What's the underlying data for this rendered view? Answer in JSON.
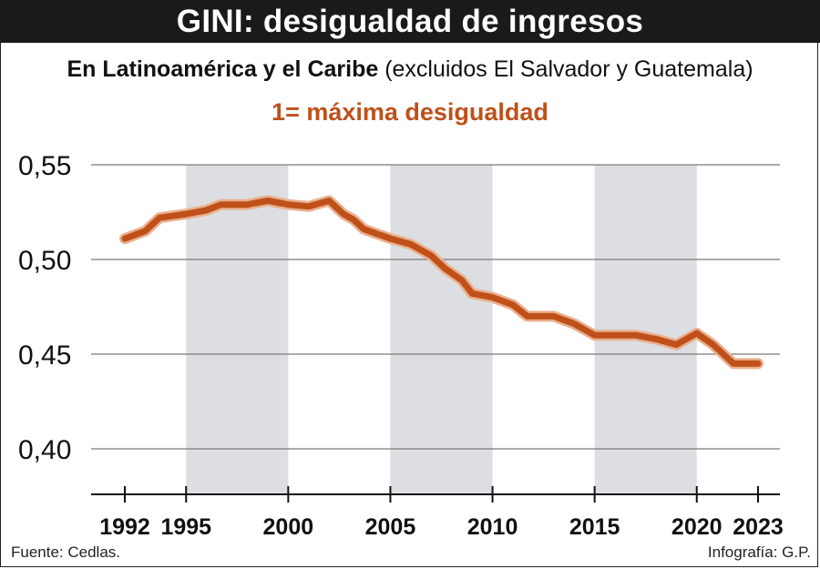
{
  "header": {
    "title": "GINI: desigualdad de ingresos",
    "subtitle_bold": "En Latinoamérica y el Caribe",
    "subtitle_rest": " (excluidos El Salvador y Guatemala)",
    "note": "1= máxima desigualdad"
  },
  "footer": {
    "source": "Fuente: Cedlas.",
    "credit": "Infografía: G.P."
  },
  "colors": {
    "line": "#c0501a",
    "band": "#dcdee2",
    "title_bg": "#1a1a1a"
  },
  "chart_data": {
    "type": "line",
    "title": "GINI: desigualdad de ingresos",
    "subtitle": "En Latinoamérica y el Caribe (excluidos El Salvador y Guatemala)",
    "xlabel": "",
    "ylabel": "",
    "xlim": [
      1992,
      2023
    ],
    "ylim": [
      0.4,
      0.55
    ],
    "grid": true,
    "y_ticks": [
      {
        "value": 0.55,
        "label": "0,55"
      },
      {
        "value": 0.5,
        "label": "0,50"
      },
      {
        "value": 0.45,
        "label": "0,45"
      },
      {
        "value": 0.4,
        "label": "0,40"
      }
    ],
    "x_ticks": [
      {
        "value": 1992,
        "label": "1992"
      },
      {
        "value": 1995,
        "label": "1995"
      },
      {
        "value": 2000,
        "label": "2000"
      },
      {
        "value": 2005,
        "label": "2005"
      },
      {
        "value": 2010,
        "label": "2010"
      },
      {
        "value": 2015,
        "label": "2015"
      },
      {
        "value": 2020,
        "label": "2020"
      },
      {
        "value": 2023,
        "label": "2023"
      }
    ],
    "shaded_periods": [
      [
        1995,
        2000
      ],
      [
        2005,
        2010
      ],
      [
        2015,
        2020
      ]
    ],
    "series": [
      {
        "x": [
          1992,
          1993,
          1993.7,
          1995,
          1996,
          1996.7,
          1998,
          1999,
          2000,
          2001,
          2002,
          2002.7,
          2003.2,
          2003.7,
          2005,
          2006,
          2007,
          2007.7,
          2008.5,
          2009,
          2010,
          2011,
          2011.7,
          2013,
          2014,
          2015,
          2016,
          2017,
          2018,
          2019,
          2020,
          2020.8,
          2021.8,
          2023
        ],
        "y": [
          0.511,
          0.515,
          0.522,
          0.524,
          0.526,
          0.529,
          0.529,
          0.531,
          0.529,
          0.528,
          0.531,
          0.524,
          0.521,
          0.516,
          0.511,
          0.508,
          0.502,
          0.495,
          0.489,
          0.482,
          0.48,
          0.476,
          0.47,
          0.47,
          0.466,
          0.46,
          0.46,
          0.46,
          0.458,
          0.455,
          0.461,
          0.455,
          0.445,
          0.445
        ]
      }
    ]
  }
}
